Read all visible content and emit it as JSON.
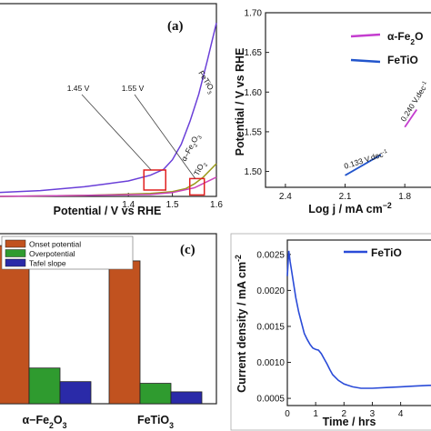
{
  "colors": {
    "fetio3_line": "#6a3fd8",
    "fe2o3_line": "#9a9a1a",
    "tio2_line": "#cc44bb",
    "box_red": "#e02020",
    "onset": "#c1521f",
    "overpotential": "#2f9b2f",
    "tafel": "#2a2aa8",
    "tafel_fe2o3": "#c43ccf",
    "tafel_fetio3": "#2255cc",
    "stability": "#2a4bd8"
  },
  "chart_data": [
    {
      "type": "line",
      "panel_label": "(a)",
      "xlabel": "Potential / V vs RHE",
      "xlim": [
        1.1,
        1.6
      ],
      "ylim": [
        0,
        1
      ],
      "x_ticks": [
        1.4,
        1.5,
        1.6
      ],
      "x_tick_labels": [
        "1.4",
        "1.5",
        "1.6"
      ],
      "series": [
        {
          "name": "FeTiO3",
          "label_parts": [
            "FeTiO",
            "3"
          ],
          "color_key": "fetio3_line",
          "x": [
            1.1,
            1.2,
            1.3,
            1.35,
            1.4,
            1.45,
            1.48,
            1.5,
            1.52,
            1.54,
            1.56,
            1.58,
            1.6
          ],
          "y": [
            0.02,
            0.03,
            0.05,
            0.065,
            0.08,
            0.11,
            0.14,
            0.19,
            0.27,
            0.39,
            0.53,
            0.71,
            0.9
          ]
        },
        {
          "name": "α-Fe2O3",
          "label_parts": [
            "α–Fe",
            "2",
            "O",
            "3"
          ],
          "color_key": "fe2o3_line",
          "x": [
            1.1,
            1.3,
            1.45,
            1.5,
            1.53,
            1.55,
            1.57,
            1.6
          ],
          "y": [
            0.0,
            0.005,
            0.015,
            0.025,
            0.04,
            0.065,
            0.1,
            0.17
          ]
        },
        {
          "name": "TiO2",
          "label_parts": [
            "TiO",
            "2"
          ],
          "color_key": "tio2_line",
          "x": [
            1.1,
            1.3,
            1.45,
            1.5,
            1.55,
            1.6
          ],
          "y": [
            0.0,
            0.005,
            0.01,
            0.02,
            0.045,
            0.1
          ]
        }
      ],
      "annotations": [
        {
          "text": "1.45 V",
          "box_x": 1.46,
          "box_y": 0.085
        },
        {
          "text": "1.55 V",
          "box_x": 1.556,
          "box_y": 0.05
        }
      ]
    },
    {
      "type": "line",
      "xlabel_parts": [
        "Log j / mA cm",
        "−2"
      ],
      "ylabel": "Potential / V vs RHE",
      "xlim": [
        2.5,
        1.65
      ],
      "ylim": [
        1.48,
        1.7
      ],
      "x_ticks": [
        2.4,
        2.1,
        1.8
      ],
      "x_tick_labels": [
        "2.4",
        "2.1",
        "1.8"
      ],
      "y_ticks": [
        1.5,
        1.55,
        1.6,
        1.65,
        1.7
      ],
      "y_tick_labels": [
        "1.50",
        "1.55",
        "1.60",
        "1.65",
        "1.70"
      ],
      "series": [
        {
          "name": "α-Fe2O3",
          "legend_parts": [
            "α-Fe",
            "2",
            "O"
          ],
          "color_key": "tafel_fe2o3",
          "x": [
            1.8,
            1.74
          ],
          "y": [
            1.556,
            1.578
          ]
        },
        {
          "name": "FeTiO3",
          "legend_parts": [
            "FeTiO"
          ],
          "color_key": "tafel_fetio3",
          "x": [
            2.1,
            1.92
          ],
          "y": [
            1.495,
            1.521
          ]
        }
      ],
      "slope_labels": [
        {
          "text_parts": [
            "0.133 V.dec",
            "-1"
          ],
          "x": 2.1,
          "y": 1.503
        },
        {
          "text_parts": [
            "0.240 V.dec",
            "-1"
          ],
          "x": 1.8,
          "y": 1.562
        }
      ]
    },
    {
      "type": "bar",
      "panel_label": "(c)",
      "categories": [
        "α−Fe2O3",
        "FeTiO3"
      ],
      "category_label_parts": [
        [
          "α−Fe",
          "2",
          "O",
          "3"
        ],
        [
          "FeTiO",
          "3"
        ]
      ],
      "ylim": [
        0,
        1
      ],
      "series": [
        {
          "name": "Onset potential",
          "color_key": "onset",
          "values": [
            0.93,
            0.84
          ]
        },
        {
          "name": "Overpotential",
          "color_key": "overpotential",
          "values": [
            0.21,
            0.12
          ]
        },
        {
          "name": "Tafel slope",
          "color_key": "tafel",
          "values": [
            0.13,
            0.07
          ]
        }
      ]
    },
    {
      "type": "line",
      "ylabel_parts": [
        "Current density / mA cm",
        "-2"
      ],
      "xlabel": "Time / hrs",
      "xlim": [
        0,
        5.2
      ],
      "ylim": [
        0.0004,
        0.0027
      ],
      "x_ticks": [
        0,
        1,
        2,
        3,
        4
      ],
      "x_tick_labels": [
        "0",
        "1",
        "2",
        "3",
        "4"
      ],
      "y_ticks": [
        0.0005,
        0.001,
        0.0015,
        0.002,
        0.0025
      ],
      "y_tick_labels": [
        "0.0005",
        "0.0010",
        "0.0015",
        "0.0020",
        "0.0025"
      ],
      "series": [
        {
          "name": "FeTiO3",
          "legend_parts": [
            "FeTiO"
          ],
          "color_key": "stability",
          "x": [
            0,
            0.05,
            0.1,
            0.2,
            0.3,
            0.4,
            0.5,
            0.6,
            0.7,
            0.8,
            0.9,
            1.0,
            1.1,
            1.2,
            1.3,
            1.4,
            1.5,
            1.6,
            1.8,
            2.0,
            2.3,
            2.6,
            3.0,
            3.5,
            4.0,
            4.5,
            5.0,
            5.2
          ],
          "y": [
            0.0022,
            0.00255,
            0.0024,
            0.00215,
            0.0019,
            0.0017,
            0.00155,
            0.0014,
            0.00132,
            0.00125,
            0.0012,
            0.00118,
            0.00117,
            0.00112,
            0.00105,
            0.00098,
            0.0009,
            0.00083,
            0.00075,
            0.0007,
            0.00066,
            0.00064,
            0.00064,
            0.00065,
            0.00066,
            0.00067,
            0.00068,
            0.00068
          ]
        }
      ]
    }
  ]
}
